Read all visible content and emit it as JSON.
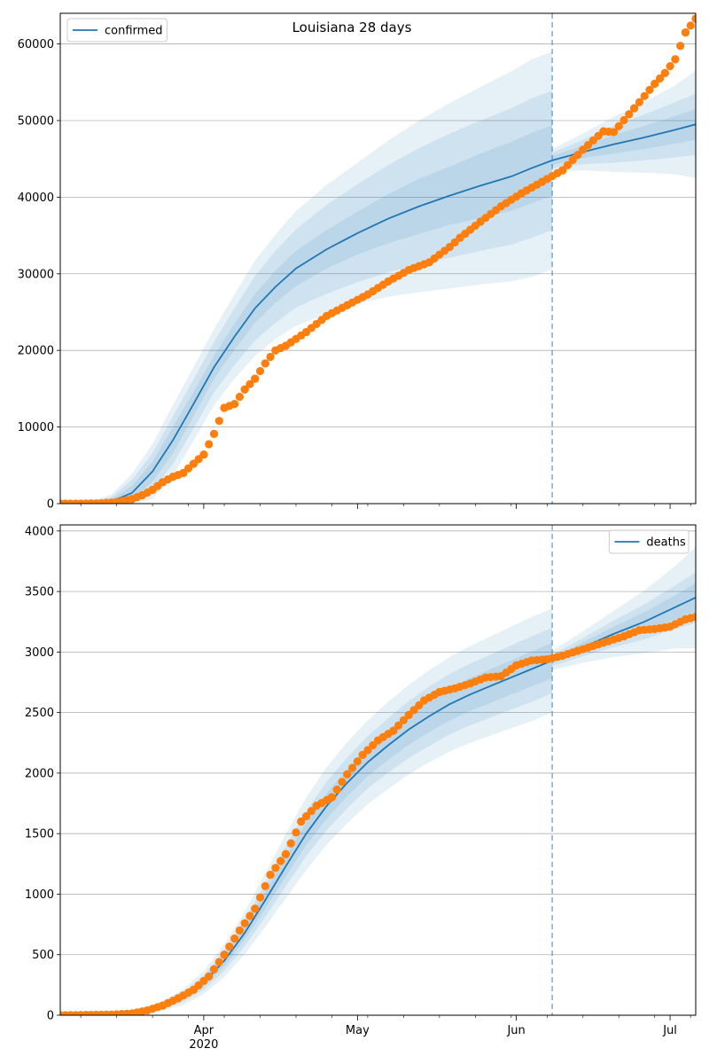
{
  "figure": {
    "title": "Louisiana 28 days"
  },
  "colors": {
    "model": "#1f77b4",
    "observed": "#ff7f0e",
    "grid": "#b0b0b0",
    "band": "#1f77b4"
  },
  "x_axis": {
    "ticks": [
      {
        "date": "2020-04-01",
        "label": "Apr",
        "sublabel": "2020"
      },
      {
        "date": "2020-05-01",
        "label": "May",
        "sublabel": ""
      },
      {
        "date": "2020-06-01",
        "label": "Jun",
        "sublabel": ""
      },
      {
        "date": "2020-07-01",
        "label": "Jul",
        "sublabel": ""
      }
    ],
    "minor_ticks": [
      "2020-03-08",
      "2020-03-15",
      "2020-03-22",
      "2020-03-29",
      "2020-04-05",
      "2020-04-12",
      "2020-04-19",
      "2020-04-26",
      "2020-05-03",
      "2020-05-10",
      "2020-05-17",
      "2020-05-24",
      "2020-05-31",
      "2020-06-07",
      "2020-06-14",
      "2020-06-21",
      "2020-06-28",
      "2020-07-05"
    ]
  },
  "chart_data": [
    {
      "type": "line",
      "title": "Louisiana 28 days",
      "legend": {
        "label": "confirmed",
        "placement": "top-left"
      },
      "xlim": [
        "2020-03-04",
        "2020-07-06"
      ],
      "ylim": [
        0,
        64000
      ],
      "yticks": [
        0,
        10000,
        20000,
        30000,
        40000,
        50000,
        60000
      ],
      "grid": "horizontal",
      "forecast_start": "2020-06-08",
      "model_series": {
        "name": "confirmed",
        "x": [
          "2020-03-04",
          "2020-03-10",
          "2020-03-14",
          "2020-03-18",
          "2020-03-22",
          "2020-03-26",
          "2020-03-30",
          "2020-04-03",
          "2020-04-07",
          "2020-04-11",
          "2020-04-15",
          "2020-04-19",
          "2020-04-25",
          "2020-05-01",
          "2020-05-07",
          "2020-05-13",
          "2020-05-19",
          "2020-05-25",
          "2020-05-31",
          "2020-06-04",
          "2020-06-08",
          "2020-06-14",
          "2020-06-20",
          "2020-06-26",
          "2020-07-02",
          "2020-07-06"
        ],
        "y": [
          0,
          50,
          300,
          1400,
          4200,
          8300,
          13000,
          17800,
          21800,
          25500,
          28300,
          30700,
          33200,
          35300,
          37200,
          38800,
          40200,
          41500,
          42700,
          43800,
          44800,
          45900,
          46900,
          47800,
          48800,
          49500
        ]
      },
      "band_half_widths": [
        [
          0,
          100,
          300,
          900,
          1300,
          1700,
          1600,
          1500,
          1700,
          1900,
          2100,
          2300,
          2500,
          2800,
          3200,
          3600,
          3800,
          4200,
          4500,
          4600,
          600,
          800,
          1200,
          1500,
          1800,
          2000
        ],
        [
          0,
          200,
          600,
          1700,
          2400,
          3100,
          3200,
          3300,
          3700,
          4200,
          4700,
          5100,
          5800,
          6400,
          7000,
          7600,
          8100,
          8500,
          8900,
          9100,
          1000,
          1600,
          2400,
          3000,
          3600,
          4000
        ],
        [
          0,
          300,
          900,
          2500,
          3600,
          4600,
          4800,
          5000,
          5500,
          6200,
          6800,
          7500,
          8400,
          9200,
          10200,
          11200,
          12100,
          12900,
          13700,
          14200,
          1500,
          2400,
          3600,
          4600,
          5800,
          7000
        ]
      ],
      "observed": {
        "x": [
          "2020-03-04",
          "2020-03-08",
          "2020-03-12",
          "2020-03-15",
          "2020-03-18",
          "2020-03-20",
          "2020-03-22",
          "2020-03-24",
          "2020-03-26",
          "2020-03-28",
          "2020-03-30",
          "2020-04-01",
          "2020-04-03",
          "2020-04-05",
          "2020-04-07",
          "2020-04-09",
          "2020-04-11",
          "2020-04-13",
          "2020-04-15",
          "2020-04-17",
          "2020-04-21",
          "2020-04-25",
          "2020-04-29",
          "2020-05-03",
          "2020-05-07",
          "2020-05-11",
          "2020-05-15",
          "2020-05-19",
          "2020-05-21",
          "2020-05-25",
          "2020-05-29",
          "2020-06-02",
          "2020-06-06",
          "2020-06-10",
          "2020-06-14",
          "2020-06-18",
          "2020-06-20",
          "2020-06-24",
          "2020-06-28",
          "2020-06-30",
          "2020-07-02",
          "2020-07-04",
          "2020-07-06"
        ],
        "y": [
          0,
          0,
          50,
          200,
          600,
          1100,
          1800,
          2800,
          3500,
          4000,
          5200,
          6400,
          9100,
          12500,
          13000,
          14900,
          16300,
          18300,
          20000,
          20600,
          22400,
          24500,
          25900,
          27300,
          29000,
          30500,
          31500,
          33500,
          34700,
          36800,
          38800,
          40500,
          42000,
          43500,
          46200,
          48600,
          48500,
          51600,
          54800,
          56200,
          58000,
          61500,
          63300
        ]
      }
    },
    {
      "type": "line",
      "title": "",
      "legend": {
        "label": "deaths",
        "placement": "top-right"
      },
      "xlim": [
        "2020-03-04",
        "2020-07-06"
      ],
      "ylim": [
        0,
        4050
      ],
      "yticks": [
        0,
        500,
        1000,
        1500,
        2000,
        2500,
        3000,
        3500,
        4000
      ],
      "grid": "horizontal",
      "forecast_start": "2020-06-08",
      "model_series": {
        "name": "deaths",
        "x": [
          "2020-03-04",
          "2020-03-16",
          "2020-03-20",
          "2020-03-24",
          "2020-03-28",
          "2020-04-01",
          "2020-04-05",
          "2020-04-09",
          "2020-04-13",
          "2020-04-17",
          "2020-04-21",
          "2020-04-25",
          "2020-04-29",
          "2020-05-03",
          "2020-05-07",
          "2020-05-11",
          "2020-05-15",
          "2020-05-19",
          "2020-05-23",
          "2020-05-27",
          "2020-05-31",
          "2020-06-04",
          "2020-06-08",
          "2020-06-14",
          "2020-06-20",
          "2020-06-26",
          "2020-07-02",
          "2020-07-06"
        ],
        "y": [
          0,
          10,
          30,
          80,
          150,
          270,
          450,
          680,
          950,
          1230,
          1500,
          1730,
          1920,
          2090,
          2230,
          2360,
          2470,
          2570,
          2650,
          2720,
          2790,
          2860,
          2930,
          3040,
          3150,
          3250,
          3370,
          3450
        ]
      },
      "band_half_widths": [
        [
          0,
          3,
          6,
          12,
          20,
          30,
          45,
          55,
          70,
          85,
          95,
          105,
          110,
          115,
          120,
          125,
          130,
          135,
          135,
          140,
          140,
          145,
          20,
          40,
          60,
          80,
          100,
          120
        ],
        [
          0,
          6,
          12,
          25,
          40,
          60,
          85,
          110,
          140,
          165,
          185,
          200,
          210,
          215,
          225,
          235,
          245,
          250,
          255,
          260,
          265,
          270,
          45,
          75,
          110,
          145,
          180,
          210
        ],
        [
          0,
          10,
          20,
          40,
          65,
          95,
          135,
          175,
          220,
          265,
          300,
          320,
          335,
          345,
          360,
          370,
          380,
          390,
          400,
          410,
          420,
          430,
          80,
          130,
          190,
          260,
          340,
          420
        ]
      ],
      "observed": {
        "x": [
          "2020-03-04",
          "2020-03-14",
          "2020-03-18",
          "2020-03-21",
          "2020-03-24",
          "2020-03-27",
          "2020-03-30",
          "2020-04-02",
          "2020-04-05",
          "2020-04-08",
          "2020-04-11",
          "2020-04-14",
          "2020-04-17",
          "2020-04-20",
          "2020-04-23",
          "2020-04-26",
          "2020-04-29",
          "2020-05-02",
          "2020-05-05",
          "2020-05-08",
          "2020-05-11",
          "2020-05-14",
          "2020-05-17",
          "2020-05-20",
          "2020-05-23",
          "2020-05-26",
          "2020-05-29",
          "2020-06-01",
          "2020-06-04",
          "2020-06-07",
          "2020-06-10",
          "2020-06-13",
          "2020-06-16",
          "2020-06-19",
          "2020-06-22",
          "2020-06-25",
          "2020-06-28",
          "2020-07-01",
          "2020-07-04",
          "2020-07-06"
        ],
        "y": [
          0,
          5,
          15,
          40,
          80,
          140,
          210,
          320,
          500,
          700,
          880,
          1160,
          1330,
          1600,
          1730,
          1800,
          1990,
          2150,
          2270,
          2350,
          2480,
          2600,
          2670,
          2700,
          2740,
          2790,
          2800,
          2890,
          2930,
          2940,
          2970,
          3010,
          3050,
          3090,
          3130,
          3180,
          3190,
          3210,
          3270,
          3290
        ]
      }
    }
  ]
}
